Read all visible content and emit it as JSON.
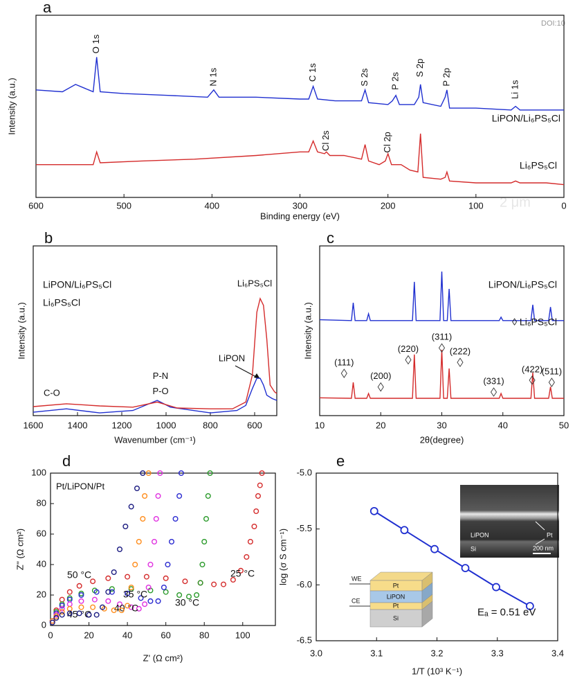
{
  "chart_data": [
    {
      "type": "line",
      "panel_label": "a",
      "xlabel": "Binding energy (eV)",
      "ylabel": "Intensity (a.u.)",
      "xlim": [
        600,
        0
      ],
      "ylim": [
        0,
        100
      ],
      "xticks": [
        600,
        500,
        400,
        300,
        200,
        100,
        0
      ],
      "series": [
        {
          "name": "LiPON/Li₆PS₅Cl",
          "color": "#1f2fd0",
          "x": [
            600,
            570,
            555,
            545,
            535,
            531,
            527,
            500,
            450,
            405,
            398,
            392,
            350,
            300,
            290,
            285,
            280,
            260,
            240,
            230,
            226,
            222,
            200,
            195,
            191,
            187,
            170,
            165,
            163,
            160,
            140,
            135,
            133,
            130,
            100,
            60,
            55,
            50,
            20,
            0
          ],
          "values": [
            59,
            58,
            62,
            60,
            58,
            77,
            58,
            57,
            56,
            55,
            59,
            55,
            55,
            54,
            54,
            61,
            54,
            53,
            53,
            53,
            59,
            52,
            51,
            53,
            56,
            51,
            51,
            55,
            62,
            52,
            50,
            55,
            59,
            49,
            49,
            48,
            50,
            48,
            48,
            48
          ]
        },
        {
          "name": "Li₆PS₅Cl",
          "color": "#d42a2a",
          "x": [
            600,
            560,
            535,
            531,
            527,
            480,
            420,
            350,
            300,
            290,
            285,
            280,
            272,
            270,
            266,
            250,
            240,
            230,
            226,
            222,
            210,
            203,
            200,
            196,
            185,
            175,
            166,
            163,
            160,
            140,
            135,
            133,
            130,
            100,
            60,
            55,
            50,
            20,
            0
          ],
          "values": [
            18,
            18,
            18,
            25,
            19,
            20,
            21,
            23,
            25,
            25,
            31,
            25,
            24,
            25,
            23,
            23,
            22,
            21,
            29,
            20,
            18,
            20,
            24,
            18,
            18,
            15,
            14,
            35,
            11,
            10,
            11,
            14,
            9,
            8,
            8,
            9,
            8,
            8,
            7
          ]
        }
      ],
      "annotations": [
        {
          "text": "O 1s",
          "x": 531,
          "y": 79
        },
        {
          "text": "N 1s",
          "x": 398,
          "y": 61
        },
        {
          "text": "C 1s",
          "x": 285,
          "y": 63.5
        },
        {
          "text": "S 2s",
          "x": 226,
          "y": 61
        },
        {
          "text": "P 2s",
          "x": 191,
          "y": 59
        },
        {
          "text": "S 2p",
          "x": 163,
          "y": 66
        },
        {
          "text": "P 2p",
          "x": 133,
          "y": 61
        },
        {
          "text": "Li 1s",
          "x": 55,
          "y": 54
        },
        {
          "text": "Cl 2s",
          "x": 270,
          "y": 25.5
        },
        {
          "text": "Cl 2p",
          "x": 200,
          "y": 24.5
        }
      ],
      "watermarks": [
        "DOI:10",
        "2 μm"
      ]
    },
    {
      "type": "line",
      "panel_label": "b",
      "xlabel": "Wavenumber (cm⁻¹)",
      "ylabel": "Intensity (a.u.)",
      "xlim": [
        1600,
        500
      ],
      "ylim": [
        0,
        100
      ],
      "xticks": [
        1600,
        1400,
        1200,
        1000,
        800,
        600
      ],
      "series": [
        {
          "name": "LiPON/Li₆PS₅Cl",
          "color": "#1f2fd0",
          "x": [
            1600,
            1450,
            1300,
            1150,
            1040,
            980,
            800,
            680,
            640,
            610,
            590,
            575,
            560,
            545,
            520,
            500
          ],
          "values": [
            2,
            4,
            1.6,
            3,
            9,
            5,
            1.6,
            3,
            6,
            16,
            22,
            22,
            18,
            12,
            10,
            9
          ]
        },
        {
          "name": "Li₆PS₅Cl",
          "color": "#d42a2a",
          "x": [
            1600,
            1450,
            1300,
            1150,
            1040,
            950,
            800,
            700,
            640,
            610,
            590,
            575,
            560,
            545,
            530,
            510,
            500
          ],
          "values": [
            5.3,
            7,
            5.7,
            5,
            8,
            4.5,
            4,
            4,
            8,
            24,
            61,
            69,
            65,
            45,
            18,
            14,
            13
          ]
        }
      ],
      "annotations": [
        {
          "text": "C-O",
          "x": 1516,
          "y": 13
        },
        {
          "text": "P-N",
          "x": 1025,
          "y": 23
        },
        {
          "text": "P-O",
          "x": 1025,
          "y": 14
        },
        {
          "text": "Li₆PS₅Cl",
          "x": 600,
          "y": 77.5
        },
        {
          "text": "LiPON",
          "x": 703,
          "y": 33.5
        }
      ]
    },
    {
      "type": "line",
      "panel_label": "c",
      "xlabel": "2θ(degree)",
      "ylabel": "Intensity (a.u.)",
      "xlim": [
        10,
        50
      ],
      "ylim": [
        0,
        100
      ],
      "xticks": [
        10,
        20,
        30,
        40,
        50
      ],
      "series": [
        {
          "name": "LiPON/Li₆PS₅Cl",
          "color": "#1f2fd0",
          "x": [
            10,
            15.2,
            15.5,
            15.8,
            17.7,
            18,
            18.3,
            25.2,
            25.5,
            25.8,
            29.7,
            30,
            30.3,
            30.9,
            31.2,
            31.5,
            39.4,
            39.7,
            40,
            44.6,
            44.9,
            45.2,
            47.5,
            47.8,
            48.1,
            50
          ],
          "values": [
            56.5,
            56,
            66.5,
            56,
            56,
            60,
            56,
            56,
            78.8,
            56,
            56,
            84.9,
            56,
            56,
            74.7,
            56,
            56,
            58,
            56,
            56,
            65.3,
            56,
            56,
            64,
            56,
            56
          ]
        },
        {
          "name": "◊ Li₆PS₅Cl",
          "color": "#d42a2a",
          "x": [
            10,
            15.2,
            15.5,
            15.8,
            17.7,
            18,
            18.3,
            25.2,
            25.5,
            25.8,
            29.7,
            30,
            30.3,
            30.9,
            31.2,
            31.5,
            39.4,
            39.7,
            40,
            44.6,
            44.9,
            45.2,
            47.5,
            47.8,
            48.1,
            50
          ],
          "values": [
            10.5,
            10.2,
            19.6,
            10.2,
            10.2,
            13,
            10.2,
            10.2,
            36,
            10.2,
            10.2,
            38.8,
            10.2,
            10.2,
            27.8,
            10.2,
            10.2,
            13,
            10.2,
            10.2,
            25.3,
            10.2,
            10.2,
            17,
            10.2,
            10.2
          ]
        }
      ],
      "annotations": [
        {
          "text": "(111)",
          "x": 14,
          "y": 31
        },
        {
          "text": "(200)",
          "x": 20,
          "y": 23
        },
        {
          "text": "(220)",
          "x": 24.5,
          "y": 39
        },
        {
          "text": "(311)",
          "x": 30,
          "y": 46
        },
        {
          "text": "(222)",
          "x": 33,
          "y": 37.5
        },
        {
          "text": "(331)",
          "x": 38.5,
          "y": 20
        },
        {
          "text": "(422)",
          "x": 44.8,
          "y": 27
        },
        {
          "text": "(511)",
          "x": 48,
          "y": 25.7
        }
      ]
    },
    {
      "type": "scatter",
      "panel_label": "d",
      "xlabel": "Z' (Ω cm²)",
      "ylabel": "Z'' (Ω cm²)",
      "note": "Pt/LiPON/Pt",
      "xlim": [
        0,
        117
      ],
      "ylim": [
        0,
        100
      ],
      "xticks": [
        0,
        20,
        40,
        60,
        80,
        100
      ],
      "yticks": [
        0,
        20,
        40,
        60,
        80,
        100
      ],
      "series": [
        {
          "name": "25 °C",
          "color": "#d42a2a",
          "x": [
            1,
            3,
            6,
            10,
            15,
            22,
            30,
            40,
            50,
            60,
            70,
            78,
            85,
            90,
            95,
            99,
            102,
            104,
            106,
            107,
            108,
            109,
            110
          ],
          "values": [
            3,
            10,
            17,
            22,
            26,
            29,
            31,
            32,
            32,
            31,
            29,
            28,
            27,
            27,
            30,
            36,
            45,
            55,
            65,
            75,
            85,
            92,
            100
          ]
        },
        {
          "name": "30 °C",
          "color": "#2a9a2a",
          "x": [
            1,
            3,
            6,
            10,
            16,
            23,
            32,
            42,
            52,
            60,
            67,
            72,
            76,
            78,
            79,
            80,
            81,
            82,
            83
          ],
          "values": [
            3,
            9,
            14,
            18,
            21,
            23,
            24,
            24,
            23,
            22,
            20,
            19,
            20,
            28,
            40,
            55,
            70,
            85,
            100
          ]
        },
        {
          "name": "35 °C",
          "color": "#2a2ad0",
          "x": [
            1,
            3,
            6,
            10,
            16,
            24,
            32,
            40,
            47,
            52,
            56,
            59,
            61,
            63,
            65,
            67,
            68
          ],
          "values": [
            3,
            8,
            13,
            17,
            20,
            22,
            22,
            21,
            18,
            16,
            16,
            25,
            40,
            55,
            70,
            85,
            100
          ]
        },
        {
          "name": "40 °C",
          "color": "#e030e0",
          "x": [
            1,
            3,
            6,
            10,
            16,
            23,
            30,
            36,
            42,
            46,
            49,
            51,
            52,
            54,
            55,
            56,
            57
          ],
          "values": [
            3,
            7,
            11,
            14,
            16,
            17,
            16,
            14,
            12,
            11,
            14,
            25,
            40,
            55,
            70,
            85,
            100
          ]
        },
        {
          "name": "45 °C",
          "color": "#ff8c1a",
          "x": [
            1,
            3,
            6,
            10,
            16,
            22,
            28,
            33,
            37,
            40,
            42,
            44,
            46,
            48,
            49,
            51
          ],
          "values": [
            3,
            6,
            9,
            11,
            12,
            12,
            11,
            10,
            10,
            13,
            25,
            40,
            55,
            70,
            85,
            100
          ]
        },
        {
          "name": "50 °C",
          "color": "#1a1a80",
          "x": [
            1,
            3,
            6,
            10,
            15,
            20,
            24,
            27,
            30,
            33,
            36,
            39,
            42,
            45,
            48
          ],
          "values": [
            2,
            5,
            7,
            8,
            8,
            7,
            7,
            12,
            22,
            35,
            50,
            65,
            78,
            90,
            100
          ]
        }
      ]
    },
    {
      "type": "line",
      "marker": "circle",
      "panel_label": "e",
      "xlabel": "1/T (10³ K⁻¹)",
      "ylabel": "log (σ S cm⁻¹)",
      "xlim": [
        3,
        3.4
      ],
      "ylim": [
        -6.5,
        -5
      ],
      "xticks": [
        {
          "value": 3,
          "label": "3.0"
        },
        3.1,
        3.2,
        3.3,
        3.4
      ],
      "yticks": [
        {
          "value": -5,
          "label": "-5.0"
        },
        -5.5,
        {
          "value": -6,
          "label": "-6.0"
        },
        -6.5
      ],
      "series": [
        {
          "color": "#1f2fd0",
          "x": [
            3.096,
            3.146,
            3.196,
            3.247,
            3.298,
            3.354
          ],
          "values": [
            -5.34,
            -5.51,
            -5.68,
            -5.85,
            -6.02,
            -6.19
          ]
        }
      ],
      "annotations": [
        {
          "text": "Eₐ = 0.51 eV",
          "x": 3.267,
          "y": -6.25,
          "color": "#1f2fd0"
        }
      ],
      "inset_labels": [
        "LiPON",
        "Pt",
        "Si",
        "200 nm"
      ],
      "schematic_labels": [
        "WE",
        "CE",
        "Pt",
        "LiPON",
        "Pt",
        "Si"
      ]
    }
  ]
}
